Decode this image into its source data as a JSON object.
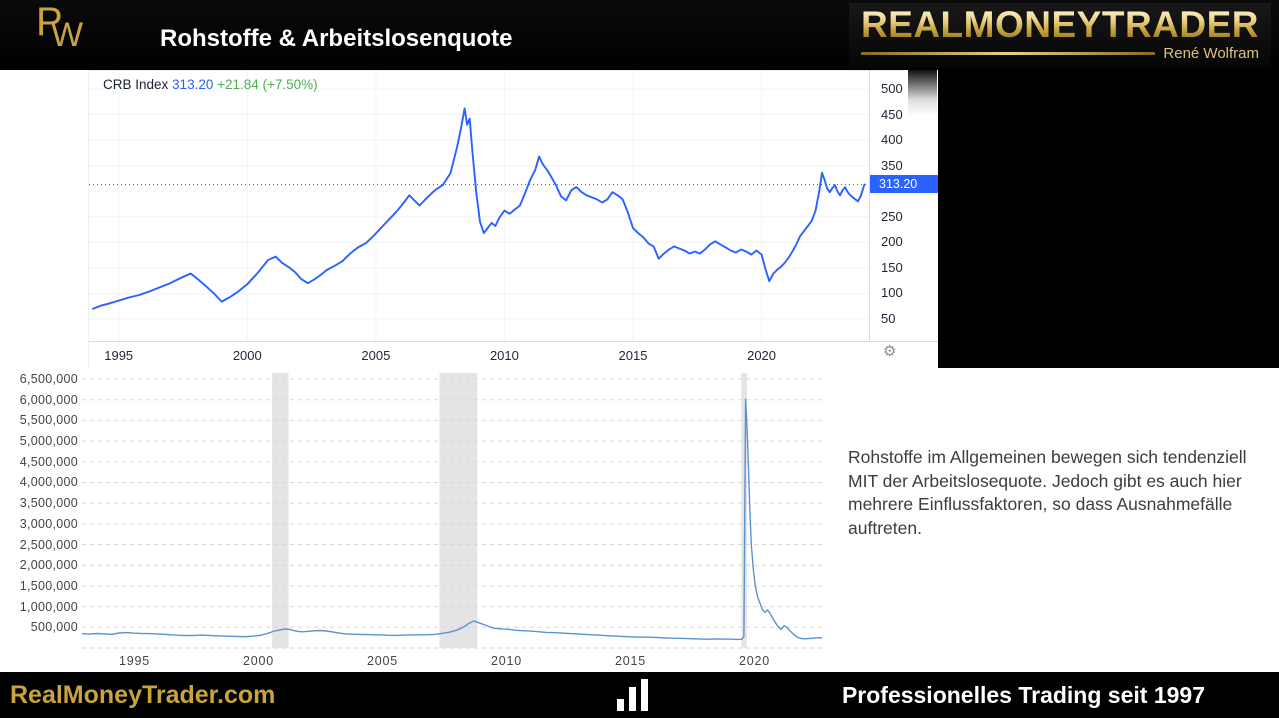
{
  "header": {
    "logo_p": "P",
    "logo_w": "W",
    "title": "Rohstoffe & Arbeitslosenquote",
    "brand": "REALMONEYTRADER",
    "brand_sub": "René Wolfram"
  },
  "note": {
    "text": "Rohstoffe im Allgemeinen bewegen sich tendenziell MIT der Arbeitslosequote. Jedoch gibt es auch hier mehrere Einflussfaktoren, so dass Ausnahmefälle auftreten."
  },
  "footer": {
    "site": "RealMoneyTrader.com",
    "tagline": "Professionelles Trading seit 1997",
    "bar_icon": "bar-chart"
  },
  "colors": {
    "gold": "#c9a43e",
    "tv_blue": "#2962ff",
    "tv_green": "#4caf50",
    "claims_blue": "#5b93d0",
    "recession_band": "#e4e4e4"
  },
  "chart_data": [
    {
      "type": "line",
      "title": "CRB Index",
      "last_price": "313.20",
      "change": "+21.84 (+7.50%)",
      "price_line": 313.2,
      "line_color": "#2962ff",
      "grid": "on",
      "legend_position": "top-left",
      "y_axis_side": "right",
      "xlim": [
        1994,
        2024.1
      ],
      "ylim": [
        50,
        500
      ],
      "xticks": [
        1995,
        2000,
        2005,
        2010,
        2015,
        2020
      ],
      "grid_yticks": [
        50,
        100,
        150,
        200,
        250,
        300,
        350,
        400,
        450,
        500
      ],
      "ytick_labels": [
        500,
        450,
        400,
        350,
        250,
        200,
        150,
        100,
        50
      ],
      "points": [
        [
          1994.0,
          70
        ],
        [
          1994.3,
          76
        ],
        [
          1994.6,
          80
        ],
        [
          1995.0,
          86
        ],
        [
          1995.4,
          92
        ],
        [
          1995.8,
          97
        ],
        [
          1996.2,
          104
        ],
        [
          1996.6,
          112
        ],
        [
          1997.0,
          120
        ],
        [
          1997.4,
          130
        ],
        [
          1997.8,
          139
        ],
        [
          1998.1,
          127
        ],
        [
          1998.4,
          114
        ],
        [
          1998.7,
          100
        ],
        [
          1999.0,
          84
        ],
        [
          1999.3,
          92
        ],
        [
          1999.6,
          102
        ],
        [
          2000.0,
          118
        ],
        [
          2000.4,
          140
        ],
        [
          2000.8,
          165
        ],
        [
          2001.1,
          172
        ],
        [
          2001.35,
          160
        ],
        [
          2001.6,
          152
        ],
        [
          2001.85,
          142
        ],
        [
          2002.1,
          128
        ],
        [
          2002.35,
          120
        ],
        [
          2002.6,
          127
        ],
        [
          2002.85,
          136
        ],
        [
          2003.1,
          146
        ],
        [
          2003.4,
          154
        ],
        [
          2003.7,
          163
        ],
        [
          2004.0,
          178
        ],
        [
          2004.3,
          190
        ],
        [
          2004.6,
          198
        ],
        [
          2004.9,
          212
        ],
        [
          2005.2,
          228
        ],
        [
          2005.5,
          244
        ],
        [
          2005.8,
          260
        ],
        [
          2006.0,
          272
        ],
        [
          2006.3,
          292
        ],
        [
          2006.5,
          282
        ],
        [
          2006.7,
          272
        ],
        [
          2007.0,
          288
        ],
        [
          2007.3,
          302
        ],
        [
          2007.6,
          312
        ],
        [
          2007.9,
          335
        ],
        [
          2008.15,
          385
        ],
        [
          2008.3,
          420
        ],
        [
          2008.45,
          462
        ],
        [
          2008.55,
          430
        ],
        [
          2008.65,
          442
        ],
        [
          2008.75,
          380
        ],
        [
          2008.9,
          300
        ],
        [
          2009.05,
          240
        ],
        [
          2009.2,
          218
        ],
        [
          2009.35,
          228
        ],
        [
          2009.5,
          238
        ],
        [
          2009.65,
          232
        ],
        [
          2009.8,
          248
        ],
        [
          2010.0,
          262
        ],
        [
          2010.2,
          256
        ],
        [
          2010.4,
          264
        ],
        [
          2010.6,
          272
        ],
        [
          2010.8,
          296
        ],
        [
          2011.0,
          322
        ],
        [
          2011.2,
          342
        ],
        [
          2011.35,
          368
        ],
        [
          2011.5,
          352
        ],
        [
          2011.65,
          342
        ],
        [
          2011.8,
          330
        ],
        [
          2012.0,
          312
        ],
        [
          2012.2,
          290
        ],
        [
          2012.4,
          282
        ],
        [
          2012.6,
          302
        ],
        [
          2012.8,
          308
        ],
        [
          2013.0,
          298
        ],
        [
          2013.2,
          292
        ],
        [
          2013.4,
          288
        ],
        [
          2013.6,
          284
        ],
        [
          2013.8,
          278
        ],
        [
          2014.0,
          284
        ],
        [
          2014.2,
          298
        ],
        [
          2014.4,
          292
        ],
        [
          2014.6,
          284
        ],
        [
          2014.8,
          258
        ],
        [
          2015.0,
          228
        ],
        [
          2015.2,
          218
        ],
        [
          2015.4,
          210
        ],
        [
          2015.6,
          198
        ],
        [
          2015.8,
          192
        ],
        [
          2016.0,
          168
        ],
        [
          2016.2,
          178
        ],
        [
          2016.4,
          186
        ],
        [
          2016.6,
          192
        ],
        [
          2016.8,
          188
        ],
        [
          2017.0,
          184
        ],
        [
          2017.2,
          178
        ],
        [
          2017.4,
          182
        ],
        [
          2017.6,
          178
        ],
        [
          2017.8,
          186
        ],
        [
          2018.0,
          196
        ],
        [
          2018.2,
          202
        ],
        [
          2018.4,
          196
        ],
        [
          2018.6,
          190
        ],
        [
          2018.8,
          184
        ],
        [
          2019.0,
          180
        ],
        [
          2019.2,
          186
        ],
        [
          2019.4,
          182
        ],
        [
          2019.6,
          176
        ],
        [
          2019.8,
          184
        ],
        [
          2020.0,
          176
        ],
        [
          2020.15,
          148
        ],
        [
          2020.3,
          124
        ],
        [
          2020.45,
          138
        ],
        [
          2020.6,
          146
        ],
        [
          2020.75,
          152
        ],
        [
          2020.9,
          160
        ],
        [
          2021.05,
          170
        ],
        [
          2021.2,
          182
        ],
        [
          2021.35,
          196
        ],
        [
          2021.5,
          212
        ],
        [
          2021.65,
          222
        ],
        [
          2021.8,
          232
        ],
        [
          2021.95,
          242
        ],
        [
          2022.1,
          262
        ],
        [
          2022.25,
          302
        ],
        [
          2022.35,
          336
        ],
        [
          2022.45,
          322
        ],
        [
          2022.55,
          306
        ],
        [
          2022.65,
          298
        ],
        [
          2022.75,
          306
        ],
        [
          2022.85,
          312
        ],
        [
          2022.95,
          300
        ],
        [
          2023.05,
          292
        ],
        [
          2023.15,
          302
        ],
        [
          2023.25,
          308
        ],
        [
          2023.35,
          298
        ],
        [
          2023.45,
          292
        ],
        [
          2023.55,
          288
        ],
        [
          2023.65,
          284
        ],
        [
          2023.75,
          280
        ],
        [
          2023.85,
          290
        ],
        [
          2024.0,
          313.2
        ]
      ]
    },
    {
      "type": "line",
      "title": "",
      "line_color": "#5b93d0",
      "band_color": "#e4e4e4",
      "grid": "dashed-horizontal",
      "y_axis_side": "left",
      "xlim": [
        1993.5,
        2023.35
      ],
      "ylim": [
        0,
        6500000
      ],
      "xticks": [
        1995,
        2000,
        2005,
        2010,
        2015,
        2020
      ],
      "yticks": [
        500000,
        1000000,
        1500000,
        2000000,
        2500000,
        3000000,
        3500000,
        4000000,
        4500000,
        5000000,
        5500000,
        6000000,
        6500000
      ],
      "grid_extra": [
        0
      ],
      "recession_bands": [
        [
          2001.17,
          2001.83
        ],
        [
          2007.92,
          2009.45
        ],
        [
          2020.1,
          2020.32
        ]
      ],
      "points": [
        [
          1993.5,
          345000
        ],
        [
          1993.8,
          335000
        ],
        [
          1994.1,
          350000
        ],
        [
          1994.4,
          340000
        ],
        [
          1994.7,
          330000
        ],
        [
          1995.0,
          362000
        ],
        [
          1995.3,
          372000
        ],
        [
          1995.6,
          358000
        ],
        [
          1995.9,
          350000
        ],
        [
          1996.2,
          348000
        ],
        [
          1996.5,
          340000
        ],
        [
          1996.8,
          330000
        ],
        [
          1997.1,
          318000
        ],
        [
          1997.4,
          308000
        ],
        [
          1997.7,
          302000
        ],
        [
          1998.0,
          300000
        ],
        [
          1998.3,
          312000
        ],
        [
          1998.6,
          305000
        ],
        [
          1998.9,
          295000
        ],
        [
          1999.2,
          288000
        ],
        [
          1999.5,
          282000
        ],
        [
          1999.8,
          278000
        ],
        [
          2000.1,
          274000
        ],
        [
          2000.4,
          288000
        ],
        [
          2000.7,
          308000
        ],
        [
          2000.95,
          345000
        ],
        [
          2001.2,
          398000
        ],
        [
          2001.45,
          432000
        ],
        [
          2001.7,
          458000
        ],
        [
          2001.9,
          448000
        ],
        [
          2002.1,
          412000
        ],
        [
          2002.35,
          392000
        ],
        [
          2002.6,
          402000
        ],
        [
          2002.85,
          415000
        ],
        [
          2003.1,
          424000
        ],
        [
          2003.35,
          410000
        ],
        [
          2003.6,
          388000
        ],
        [
          2003.85,
          362000
        ],
        [
          2004.1,
          344000
        ],
        [
          2004.4,
          334000
        ],
        [
          2004.7,
          328000
        ],
        [
          2005.0,
          324000
        ],
        [
          2005.3,
          320000
        ],
        [
          2005.6,
          316000
        ],
        [
          2005.9,
          308000
        ],
        [
          2006.2,
          304000
        ],
        [
          2006.5,
          312000
        ],
        [
          2006.8,
          316000
        ],
        [
          2007.1,
          318000
        ],
        [
          2007.4,
          322000
        ],
        [
          2007.7,
          328000
        ],
        [
          2008.0,
          352000
        ],
        [
          2008.3,
          380000
        ],
        [
          2008.6,
          428000
        ],
        [
          2008.9,
          510000
        ],
        [
          2009.1,
          592000
        ],
        [
          2009.3,
          652000
        ],
        [
          2009.5,
          612000
        ],
        [
          2009.7,
          568000
        ],
        [
          2009.9,
          522000
        ],
        [
          2010.1,
          478000
        ],
        [
          2010.4,
          462000
        ],
        [
          2010.7,
          452000
        ],
        [
          2011.0,
          428000
        ],
        [
          2011.3,
          418000
        ],
        [
          2011.6,
          408000
        ],
        [
          2011.9,
          395000
        ],
        [
          2012.2,
          378000
        ],
        [
          2012.5,
          372000
        ],
        [
          2012.8,
          366000
        ],
        [
          2013.1,
          352000
        ],
        [
          2013.4,
          342000
        ],
        [
          2013.7,
          332000
        ],
        [
          2014.0,
          322000
        ],
        [
          2014.3,
          312000
        ],
        [
          2014.6,
          300000
        ],
        [
          2014.9,
          292000
        ],
        [
          2015.2,
          282000
        ],
        [
          2015.5,
          274000
        ],
        [
          2015.8,
          268000
        ],
        [
          2016.1,
          262000
        ],
        [
          2016.4,
          260000
        ],
        [
          2016.7,
          254000
        ],
        [
          2017.0,
          244000
        ],
        [
          2017.3,
          238000
        ],
        [
          2017.6,
          234000
        ],
        [
          2017.9,
          228000
        ],
        [
          2018.2,
          222000
        ],
        [
          2018.5,
          216000
        ],
        [
          2018.8,
          212000
        ],
        [
          2019.1,
          218000
        ],
        [
          2019.4,
          214000
        ],
        [
          2019.7,
          212000
        ],
        [
          2019.95,
          208000
        ],
        [
          2020.12,
          212000
        ],
        [
          2020.2,
          282000
        ],
        [
          2020.27,
          6010000
        ],
        [
          2020.33,
          5300000
        ],
        [
          2020.38,
          4400000
        ],
        [
          2020.44,
          3300000
        ],
        [
          2020.5,
          2500000
        ],
        [
          2020.58,
          1900000
        ],
        [
          2020.66,
          1500000
        ],
        [
          2020.75,
          1240000
        ],
        [
          2020.85,
          1080000
        ],
        [
          2020.95,
          920000
        ],
        [
          2021.05,
          860000
        ],
        [
          2021.15,
          920000
        ],
        [
          2021.25,
          840000
        ],
        [
          2021.4,
          680000
        ],
        [
          2021.55,
          540000
        ],
        [
          2021.7,
          450000
        ],
        [
          2021.82,
          540000
        ],
        [
          2021.92,
          505000
        ],
        [
          2022.05,
          420000
        ],
        [
          2022.2,
          330000
        ],
        [
          2022.35,
          260000
        ],
        [
          2022.5,
          232000
        ],
        [
          2022.65,
          222000
        ],
        [
          2022.8,
          228000
        ],
        [
          2023.0,
          238000
        ],
        [
          2023.2,
          250000
        ],
        [
          2023.35,
          242000
        ]
      ]
    }
  ]
}
